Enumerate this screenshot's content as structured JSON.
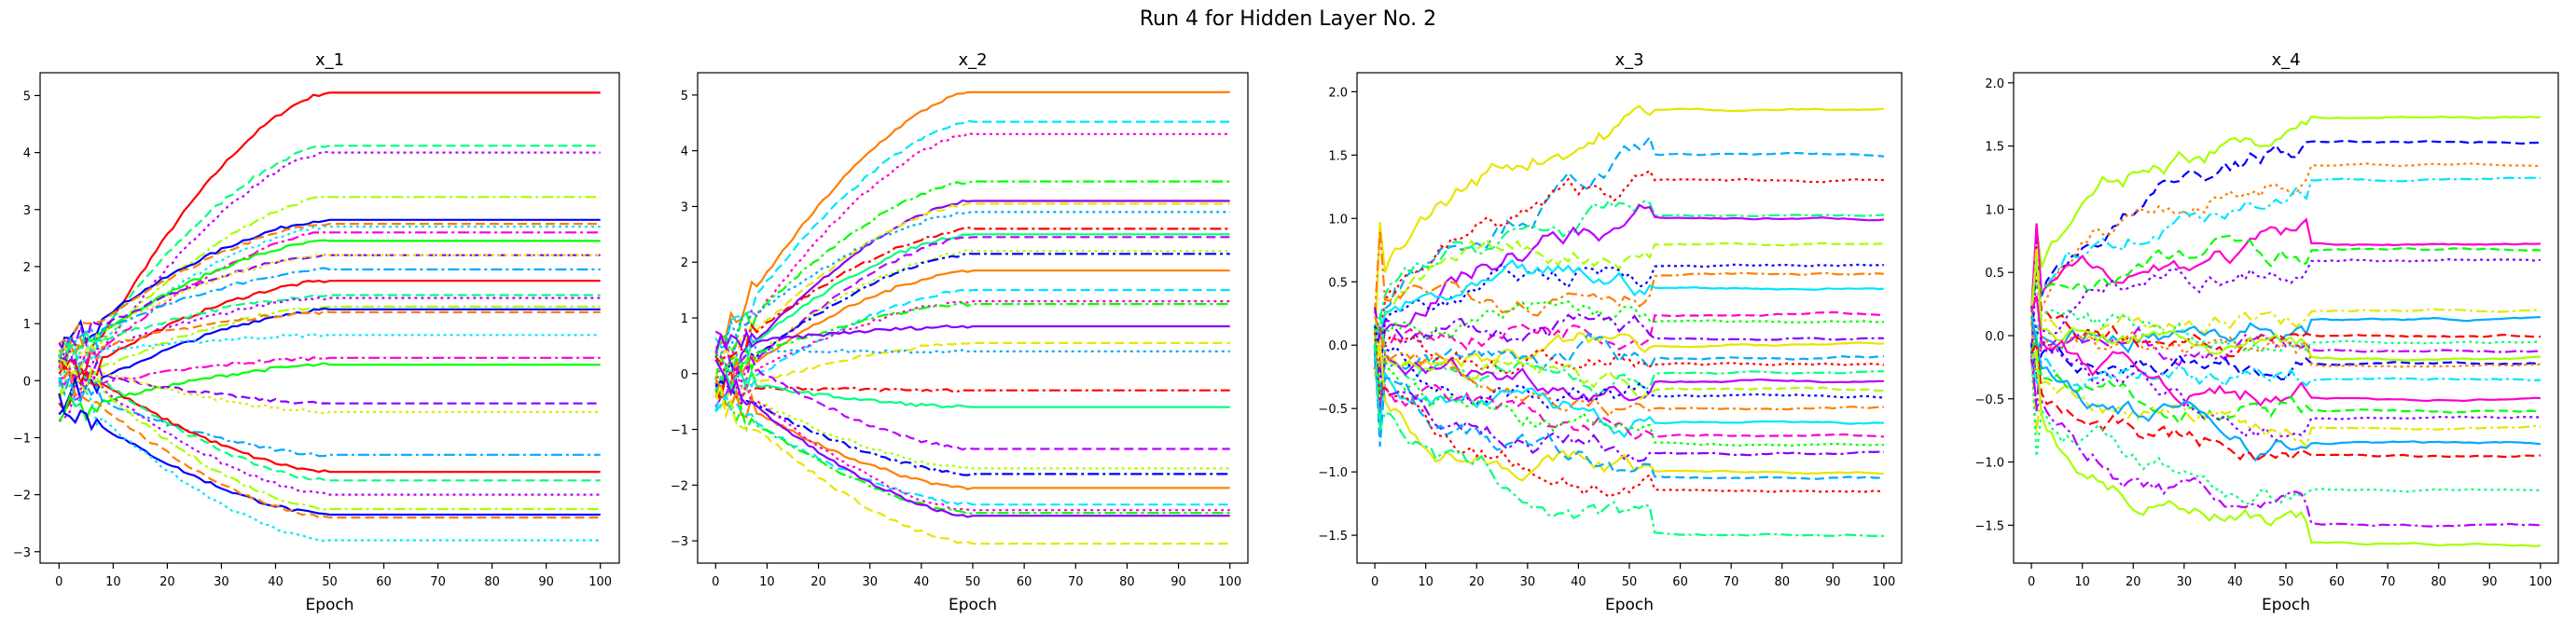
{
  "figure": {
    "title": "Run 4 for Hidden Layer No. 2"
  },
  "chart_data": [
    {
      "type": "line",
      "title": "x_1",
      "xlabel": "Epoch",
      "ylabel": "",
      "xlim": [
        -3.5,
        103.5
      ],
      "ylim": [
        -3.2,
        5.4
      ],
      "x_ticks": [
        0,
        10,
        20,
        30,
        40,
        50,
        60,
        70,
        80,
        90,
        100
      ],
      "y_ticks": [
        -3,
        -2,
        -1,
        0,
        1,
        2,
        3,
        4,
        5
      ],
      "legend": "none",
      "grid": false,
      "series_overview": "about 30 curves starting near 0 at epoch 0 and diverging to stable levels by epoch ~50",
      "final_values": [
        5.05,
        4.12,
        4.0,
        3.22,
        2.82,
        2.75,
        2.7,
        2.6,
        2.45,
        2.2,
        2.2,
        1.95,
        1.75,
        1.5,
        1.45,
        1.3,
        1.25,
        1.2,
        0.8,
        0.4,
        0.28,
        -0.4,
        -0.55,
        -1.3,
        -1.6,
        -1.75,
        -2.0,
        -2.25,
        -2.35,
        -2.4,
        -2.8
      ]
    },
    {
      "type": "line",
      "title": "x_2",
      "xlabel": "Epoch",
      "ylabel": "",
      "xlim": [
        -3.5,
        103.5
      ],
      "ylim": [
        -3.4,
        5.4
      ],
      "x_ticks": [
        0,
        10,
        20,
        30,
        40,
        50,
        60,
        70,
        80,
        90,
        100
      ],
      "y_ticks": [
        -3,
        -2,
        -1,
        0,
        1,
        2,
        3,
        4,
        5
      ],
      "legend": "none",
      "grid": false,
      "series_overview": "about 30 curves fanning out from 0 and plateauing after epoch ~50",
      "final_values": [
        5.05,
        4.52,
        4.3,
        3.45,
        3.1,
        3.05,
        2.9,
        2.6,
        2.5,
        2.45,
        2.2,
        2.15,
        1.85,
        1.5,
        1.3,
        1.25,
        0.85,
        0.55,
        0.4,
        -0.3,
        -0.6,
        -1.35,
        -1.7,
        -1.8,
        -2.05,
        -2.35,
        -2.45,
        -2.5,
        -2.55,
        -3.05
      ]
    },
    {
      "type": "line",
      "title": "x_3",
      "xlabel": "Epoch",
      "ylabel": "",
      "xlim": [
        -3.5,
        103.5
      ],
      "ylim": [
        -1.72,
        2.15
      ],
      "x_ticks": [
        0,
        10,
        20,
        30,
        40,
        50,
        60,
        70,
        80,
        90,
        100
      ],
      "y_ticks": [
        -1.5,
        -1.0,
        -0.5,
        0.0,
        0.5,
        1.0,
        1.5,
        2.0
      ],
      "legend": "none",
      "grid": false,
      "series_overview": "about 30 noisy curves that settle after epoch ~55",
      "final_values": [
        1.86,
        1.5,
        1.3,
        1.02,
        1.0,
        0.8,
        0.63,
        0.56,
        0.45,
        0.25,
        0.18,
        0.05,
        0.0,
        -0.1,
        -0.15,
        -0.22,
        -0.28,
        -0.35,
        -0.4,
        -0.5,
        -0.62,
        -0.72,
        -0.78,
        -0.85,
        -1.0,
        -1.05,
        -1.15,
        -1.5
      ]
    },
    {
      "type": "line",
      "title": "x_4",
      "xlabel": "Epoch",
      "ylabel": "",
      "xlim": [
        -3.5,
        103.5
      ],
      "ylim": [
        -1.8,
        2.08
      ],
      "x_ticks": [
        0,
        10,
        20,
        30,
        40,
        50,
        60,
        70,
        80,
        90,
        100
      ],
      "y_ticks": [
        -1.5,
        -1.0,
        -0.5,
        0.0,
        0.5,
        1.0,
        1.5,
        2.0
      ],
      "legend": "none",
      "grid": false,
      "series_overview": "about 30 noisy curves that settle after epoch ~55",
      "final_values": [
        1.73,
        1.53,
        1.35,
        1.24,
        0.72,
        0.68,
        0.6,
        0.2,
        0.13,
        0.0,
        -0.05,
        -0.12,
        -0.18,
        -0.22,
        -0.25,
        -0.35,
        -0.5,
        -0.6,
        -0.65,
        -0.72,
        -0.85,
        -0.95,
        -1.22,
        -1.5,
        -1.65
      ]
    }
  ]
}
